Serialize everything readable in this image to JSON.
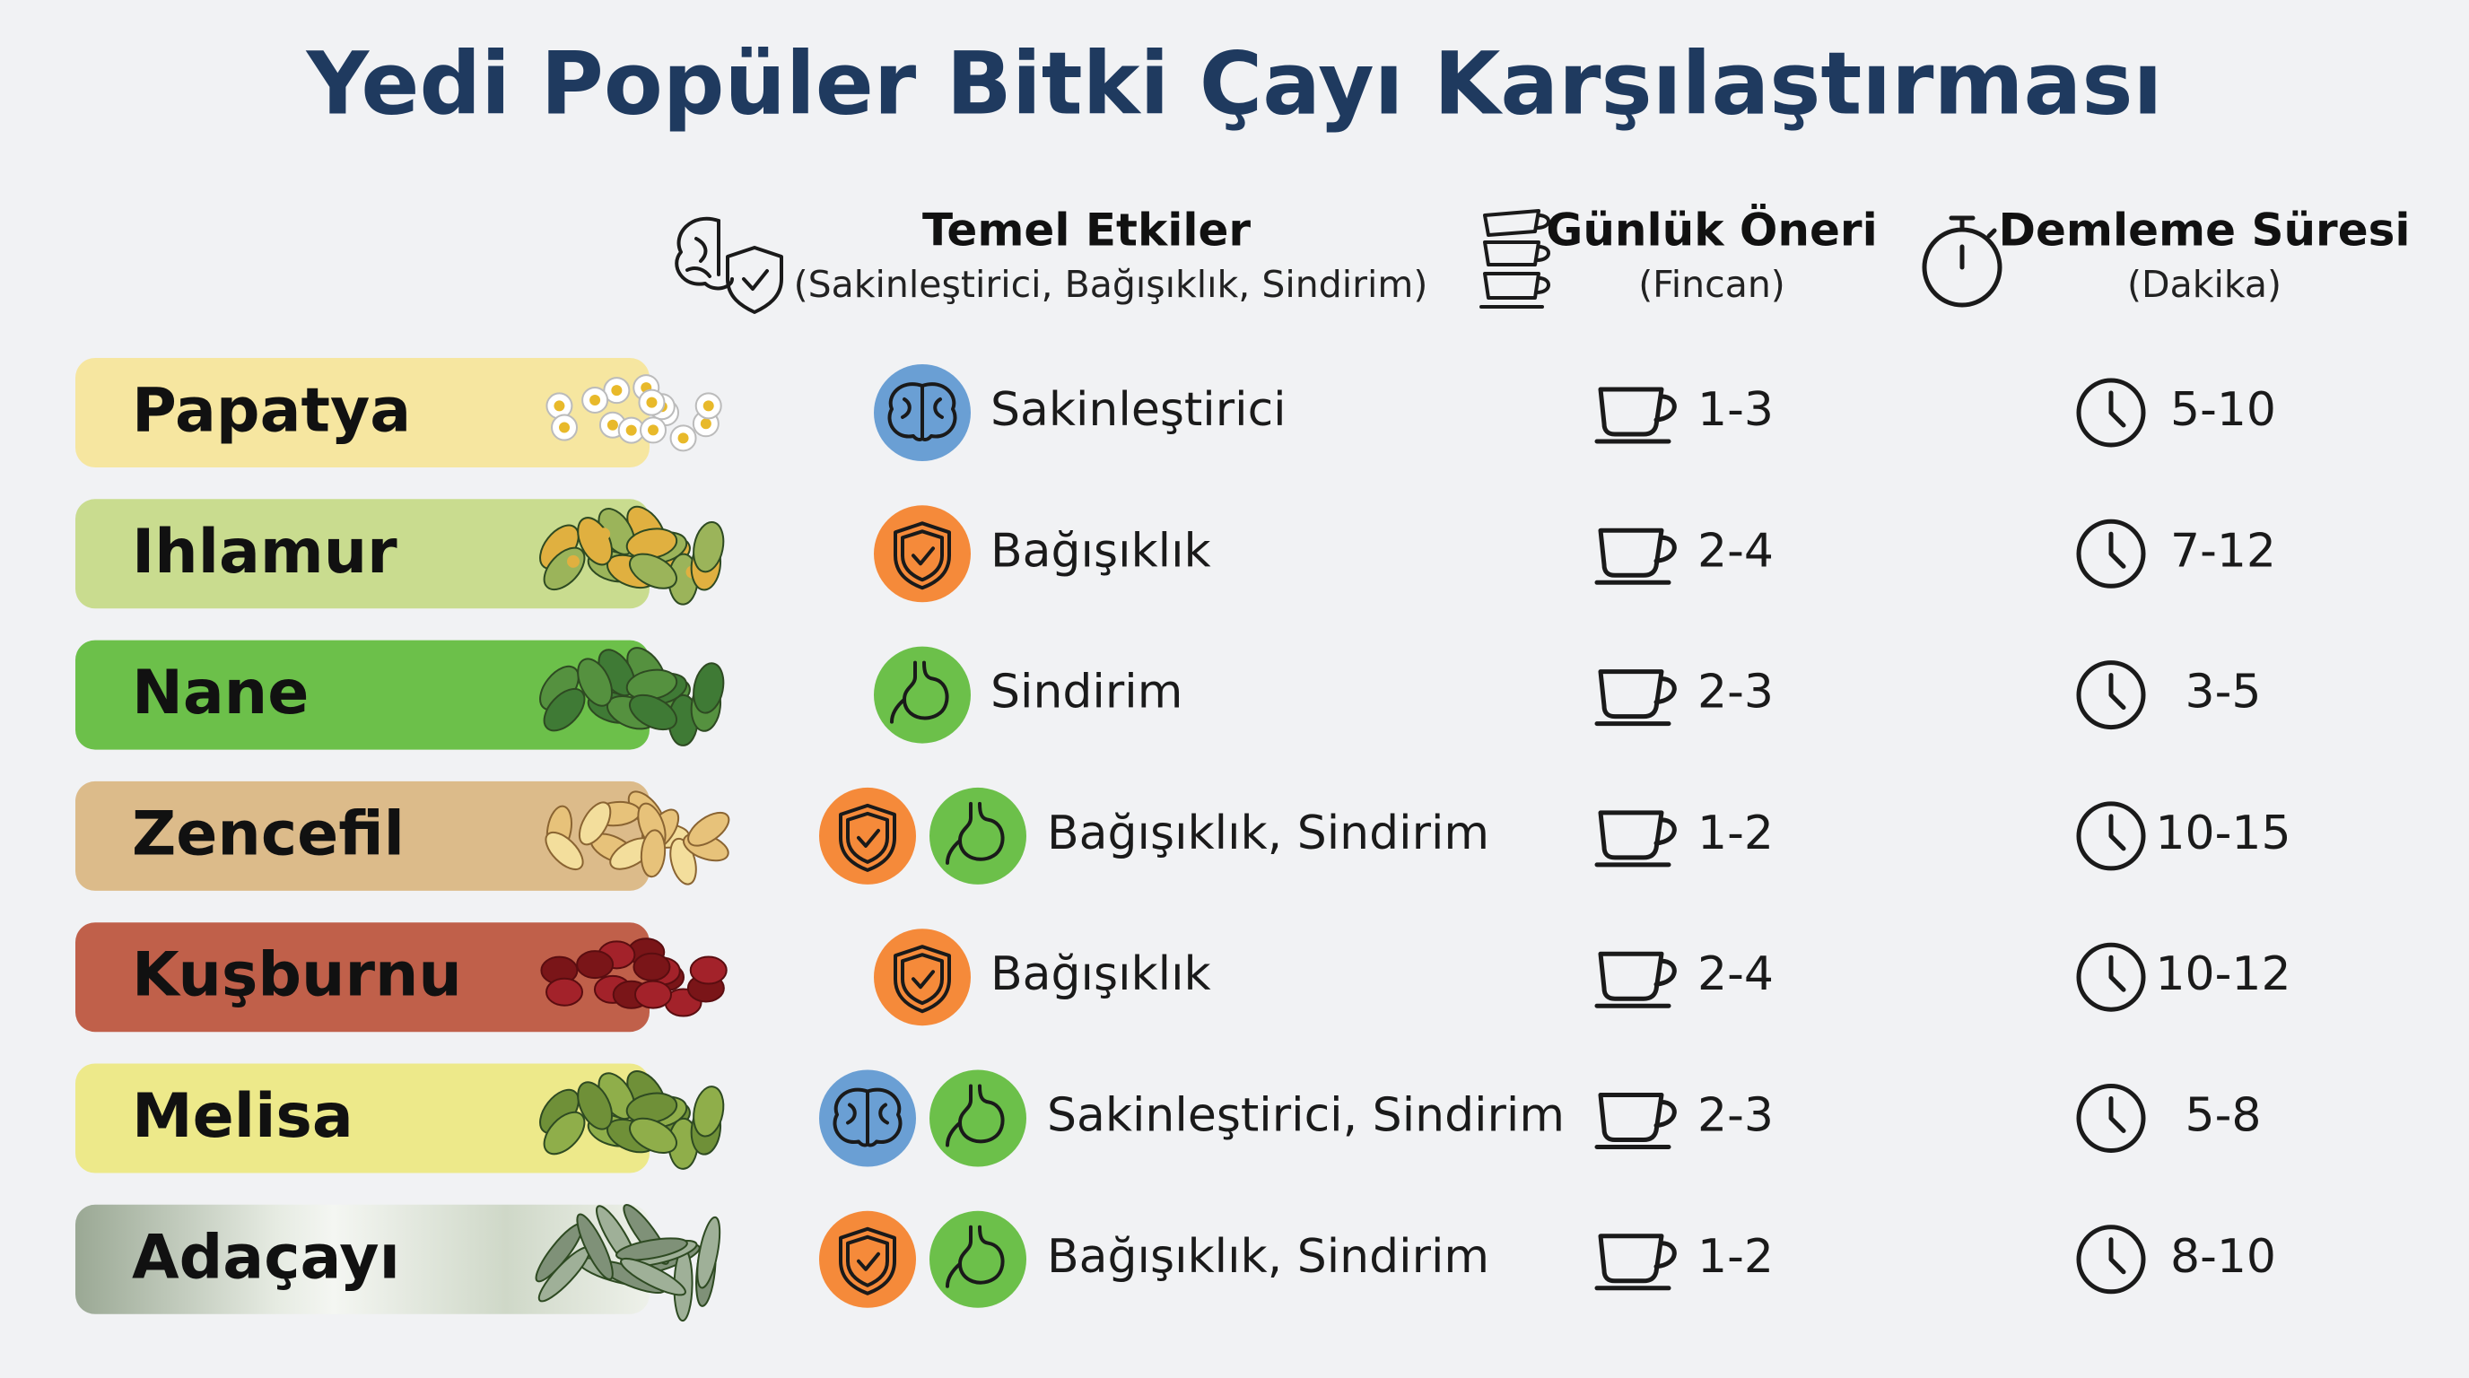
{
  "title": "Yedi Popüler Bitki Çayı Karşılaştırması",
  "columns": [
    {
      "title": "Temel Etkiler",
      "subtitle": "(Sakinleştirici, Bağışıklık, Sindirim)"
    },
    {
      "title": "Günlük Öneri",
      "subtitle": "(Fincan)"
    },
    {
      "title": "Demleme Süresi",
      "subtitle": "(Dakika)"
    }
  ],
  "rows": [
    {
      "name": "Papatya",
      "effects": "Sakinleştirici",
      "daily": "1-3",
      "brew": "5-10"
    },
    {
      "name": "Ihlamur",
      "effects": "Bağışıklık",
      "daily": "2-4",
      "brew": "7-12"
    },
    {
      "name": "Nane",
      "effects": "Sindirim",
      "daily": "2-3",
      "brew": "3-5"
    },
    {
      "name": "Zencefil",
      "effects": "Bağışıklık, Sindirim",
      "daily": "1-2",
      "brew": "10-15"
    },
    {
      "name": "Kuşburnu",
      "effects": "Bağışıklık",
      "daily": "2-4",
      "brew": "10-12"
    },
    {
      "name": "Melisa",
      "effects": "Sakinleştirici, Sindirim",
      "daily": "2-3",
      "brew": "5-8"
    },
    {
      "name": "Adaçayı",
      "effects": "Bağışıklık, Sindirim",
      "daily": "1-2",
      "brew": "8-10"
    }
  ]
}
